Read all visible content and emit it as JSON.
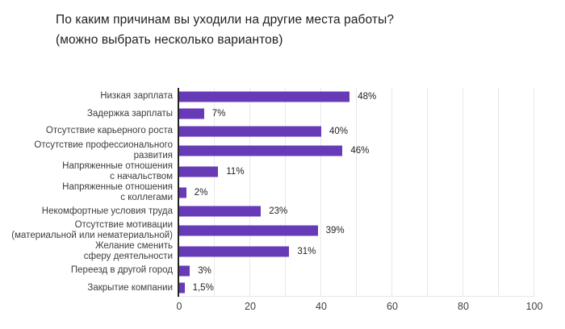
{
  "title": {
    "line1": "По каким причинам вы уходили на другие места работы?",
    "line2": "(можно выбрать несколько вариантов)"
  },
  "colors": {
    "bar": "#673ab7",
    "title_text": "#212121",
    "label_text": "#3c3c3c",
    "value_text": "#1f1f1f",
    "tick_text": "#3c4043",
    "gridline": "#e8e8e8",
    "axis": "#222222"
  },
  "chart_data": {
    "type": "bar",
    "orientation": "horizontal",
    "title": "По каким причинам вы уходили на другие места работы? (можно выбрать несколько вариантов)",
    "categories": [
      "Низкая зарплата",
      "Задержка зарплаты",
      "Отсутствие карьерного роста",
      "Отсутствие профессионального развития",
      "Напряженные отношения с начальством",
      "Напряженные отношения с коллегами",
      "Некомфортные условия труда",
      "Отсутствие мотивации (материальной или нематериальной)",
      "Желание сменить сферу деятельности",
      "Переезд в другой город",
      "Закрытие компании"
    ],
    "category_label_lines": [
      [
        "Низкая зарплата"
      ],
      [
        "Задержка зарплаты"
      ],
      [
        "Отсутствие карьерного роста"
      ],
      [
        "Отсутствие профессионального",
        "развития"
      ],
      [
        "Напряженные отношения",
        "с начальством"
      ],
      [
        "Напряженные отношения",
        "с коллегами"
      ],
      [
        "Некомфортные условия труда"
      ],
      [
        "Отсутствие мотивации",
        "(материальной или нематериальной)"
      ],
      [
        "Желание сменить",
        "сферу деятельности"
      ],
      [
        "Переезд в другой город"
      ],
      [
        "Закрытие компании"
      ]
    ],
    "values": [
      48,
      7,
      40,
      46,
      11,
      2,
      23,
      39,
      31,
      3,
      1.5
    ],
    "value_labels": [
      "48%",
      "7%",
      "40%",
      "46%",
      "11%",
      "2%",
      "23%",
      "39%",
      "31%",
      "3%",
      "1,5%"
    ],
    "xlim": [
      0,
      100
    ],
    "x_ticks": [
      0,
      20,
      40,
      60,
      80,
      100
    ],
    "gridlines_every": 10,
    "grid": "vertical",
    "legend": "none",
    "bar_color": "#673ab7"
  }
}
